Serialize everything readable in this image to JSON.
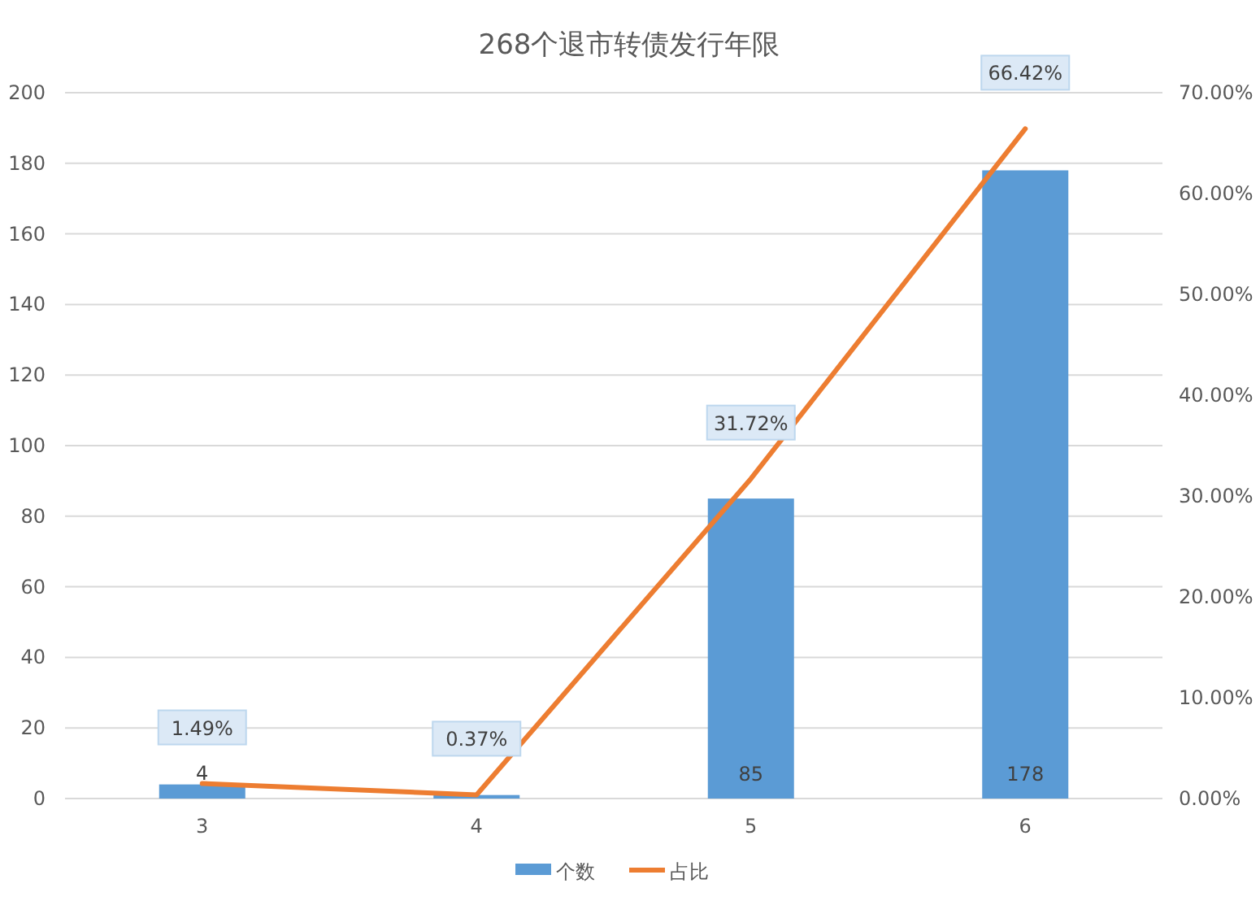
{
  "chart_data": {
    "type": "bar",
    "title": "268个退市转债发行年限",
    "categories": [
      "3",
      "4",
      "5",
      "6"
    ],
    "series": [
      {
        "name": "个数",
        "color": "#5b9bd5",
        "values": [
          4,
          1,
          85,
          178
        ],
        "value_labels": [
          "4",
          null,
          "85",
          "178"
        ]
      },
      {
        "name": "占比",
        "type": "line",
        "axis": "y2",
        "color": "#ed7d31",
        "values": [
          1.49,
          0.37,
          31.72,
          66.42
        ],
        "value_labels": [
          "1.49%",
          "0.37%",
          "31.72%",
          "66.42%"
        ]
      }
    ],
    "ylim": [
      0,
      200
    ],
    "yticks": [
      0,
      20,
      40,
      60,
      80,
      100,
      120,
      140,
      160,
      180,
      200
    ],
    "y2lim": [
      0,
      70
    ],
    "y2ticks": [
      {
        "value": 0,
        "label": "0.00%"
      },
      {
        "value": 10,
        "label": "10.00%"
      },
      {
        "value": 20,
        "label": "20.00%"
      },
      {
        "value": 30,
        "label": "30.00%"
      },
      {
        "value": 40,
        "label": "40.00%"
      },
      {
        "value": 50,
        "label": "50.00%"
      },
      {
        "value": 60,
        "label": "60.00%"
      },
      {
        "value": 70,
        "label": "70.00%"
      }
    ],
    "grid": "y",
    "legend": "bottom"
  }
}
